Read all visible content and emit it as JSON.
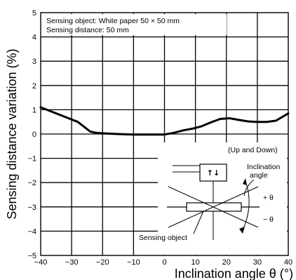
{
  "chart_data": {
    "type": "line",
    "xlabel": "Inclination angle θ (°)",
    "ylabel": "Sensing distance variation (%)",
    "xlim": [
      -40,
      40
    ],
    "ylim": [
      -5,
      5
    ],
    "x_ticks": [
      "−40",
      "−30",
      "−20",
      "−10",
      "0",
      "10",
      "20",
      "30",
      "40"
    ],
    "y_ticks": [
      "5",
      "4",
      "3",
      "2",
      "1",
      "0",
      "−1",
      "−2",
      "−3",
      "−4",
      "−5"
    ],
    "grid": true,
    "annotation_lines": [
      "Sensing object:   White paper 50 × 50 mm",
      "Sensing distance: 50 mm"
    ],
    "series": [
      {
        "x": [
          -40,
          -37,
          -34,
          -31,
          -28,
          -26,
          -24,
          -22,
          -20,
          -15,
          -10,
          -5,
          0,
          3,
          6,
          9,
          12,
          15,
          18,
          21,
          24,
          27,
          30,
          33,
          36,
          38,
          40
        ],
        "y": [
          1.1,
          0.95,
          0.8,
          0.65,
          0.5,
          0.3,
          0.1,
          0.05,
          0.03,
          0.0,
          -0.02,
          -0.02,
          -0.02,
          0.05,
          0.15,
          0.22,
          0.32,
          0.48,
          0.62,
          0.65,
          0.58,
          0.52,
          0.5,
          0.5,
          0.55,
          0.7,
          0.85
        ]
      }
    ],
    "inset": {
      "title": "(Up and Down)",
      "labels": {
        "inclination": [
          "Inclination",
          "angle"
        ],
        "plus": "+ θ",
        "minus": "− θ",
        "object": "Sensing object"
      },
      "sensor_symbol": "↑↓"
    }
  }
}
